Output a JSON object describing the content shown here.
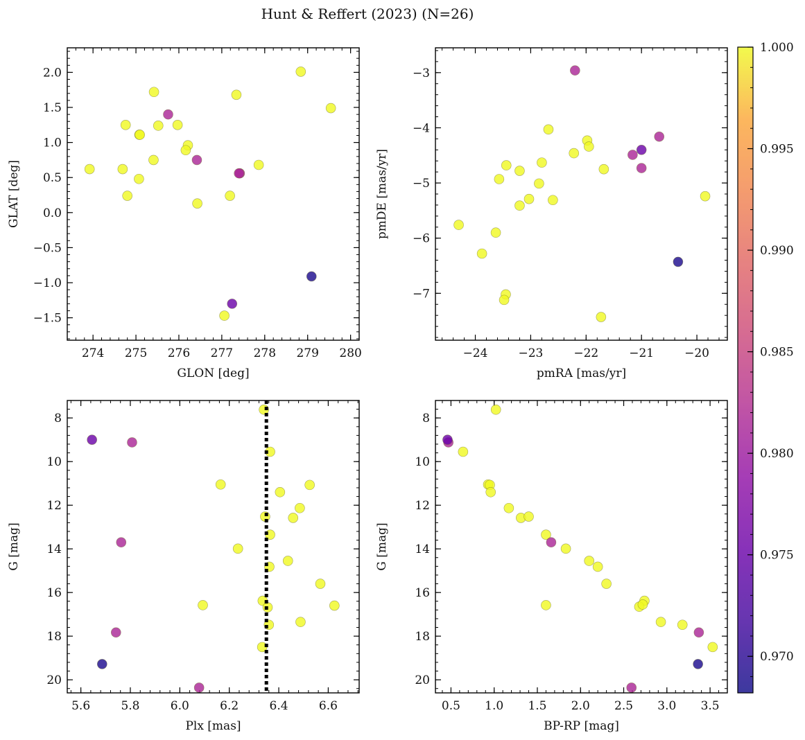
{
  "title": "Hunt & Reffert (2023) (N=26)",
  "colormap": "plasma",
  "colorbar": {
    "vmin": 0.9682,
    "vmax": 1.0,
    "ticks": [
      0.97,
      0.975,
      0.98,
      0.985,
      0.99,
      0.995,
      1.0
    ],
    "tick_labels": [
      "0.970",
      "0.975",
      "0.980",
      "0.985",
      "0.990",
      "0.995",
      "1.000"
    ]
  },
  "chart_data": [
    {
      "id": "glon_glat",
      "type": "scatter",
      "xlabel": "GLON [deg]",
      "ylabel": "GLAT [deg]",
      "xlim": [
        273.4,
        280.2
      ],
      "ylim": [
        -1.82,
        2.35
      ],
      "xticks": [
        274,
        275,
        276,
        277,
        278,
        279,
        280
      ],
      "xtick_labels": [
        "274",
        "275",
        "276",
        "277",
        "278",
        "279",
        "280"
      ],
      "yticks": [
        -1.5,
        -1.0,
        -0.5,
        0.0,
        0.5,
        1.0,
        1.5,
        2.0
      ],
      "ytick_labels": [
        "−1.5",
        "−1.0",
        "−0.5",
        "0.0",
        "0.5",
        "1.0",
        "1.5",
        "2.0"
      ],
      "x_minor_step": 0.2,
      "y_minor_step": 0.1,
      "inverted_y": false,
      "points": [
        {
          "x": 273.92,
          "y": 0.62,
          "c": 1.0
        },
        {
          "x": 274.76,
          "y": 1.25,
          "c": 1.0
        },
        {
          "x": 274.69,
          "y": 0.62,
          "c": 1.0
        },
        {
          "x": 274.8,
          "y": 0.24,
          "c": 1.0
        },
        {
          "x": 275.08,
          "y": 1.11,
          "c": 1.0
        },
        {
          "x": 275.07,
          "y": 0.48,
          "c": 1.0
        },
        {
          "x": 275.42,
          "y": 1.72,
          "c": 1.0
        },
        {
          "x": 275.41,
          "y": 0.75,
          "c": 1.0
        },
        {
          "x": 275.52,
          "y": 1.24,
          "c": 1.0
        },
        {
          "x": 275.97,
          "y": 1.25,
          "c": 1.0
        },
        {
          "x": 276.21,
          "y": 0.96,
          "c": 1.0
        },
        {
          "x": 276.16,
          "y": 0.89,
          "c": 1.0
        },
        {
          "x": 276.43,
          "y": 0.13,
          "c": 1.0
        },
        {
          "x": 277.34,
          "y": 1.68,
          "c": 1.0
        },
        {
          "x": 277.19,
          "y": 0.24,
          "c": 1.0
        },
        {
          "x": 277.06,
          "y": -1.47,
          "c": 1.0
        },
        {
          "x": 277.86,
          "y": 0.68,
          "c": 1.0
        },
        {
          "x": 278.84,
          "y": 2.01,
          "c": 1.0
        },
        {
          "x": 279.54,
          "y": 1.49,
          "c": 1.0
        },
        {
          "x": 275.75,
          "y": 1.4,
          "c": 0.9815
        },
        {
          "x": 276.42,
          "y": 0.75,
          "c": 0.9815
        },
        {
          "x": 277.42,
          "y": 0.56,
          "c": 0.9815
        },
        {
          "x": 277.4,
          "y": 0.56,
          "c": 0.9815
        },
        {
          "x": 277.24,
          "y": -1.3,
          "c": 0.9752
        },
        {
          "x": 279.09,
          "y": -0.91,
          "c": 0.969
        },
        {
          "x": 275.09,
          "y": 1.11,
          "c": 1.0
        }
      ]
    },
    {
      "id": "pmra_pmde",
      "type": "scatter",
      "xlabel": "pmRA [mas/yr]",
      "ylabel": "pmDE [mas/yr]",
      "xlim": [
        -24.72,
        -19.45
      ],
      "ylim": [
        -7.85,
        -2.55
      ],
      "xticks": [
        -24,
        -23,
        -22,
        -21,
        -20
      ],
      "xtick_labels": [
        "−24",
        "−23",
        "−22",
        "−21",
        "−20"
      ],
      "yticks": [
        -7,
        -6,
        -5,
        -4,
        -3
      ],
      "ytick_labels": [
        "−7",
        "−6",
        "−5",
        "−4",
        "−3"
      ],
      "x_minor_step": 0.2,
      "y_minor_step": 0.2,
      "inverted_y": false,
      "points": [
        {
          "x": -24.3,
          "y": -5.76,
          "c": 1.0
        },
        {
          "x": -23.88,
          "y": -6.28,
          "c": 1.0
        },
        {
          "x": -23.63,
          "y": -5.9,
          "c": 1.0
        },
        {
          "x": -23.57,
          "y": -4.93,
          "c": 1.0
        },
        {
          "x": -23.44,
          "y": -4.68,
          "c": 1.0
        },
        {
          "x": -23.45,
          "y": -7.02,
          "c": 1.0
        },
        {
          "x": -23.48,
          "y": -7.12,
          "c": 1.0
        },
        {
          "x": -23.2,
          "y": -4.78,
          "c": 1.0
        },
        {
          "x": -23.2,
          "y": -5.41,
          "c": 1.0
        },
        {
          "x": -23.03,
          "y": -5.29,
          "c": 1.0
        },
        {
          "x": -22.85,
          "y": -5.01,
          "c": 1.0
        },
        {
          "x": -22.8,
          "y": -4.63,
          "c": 1.0
        },
        {
          "x": -22.68,
          "y": -4.03,
          "c": 1.0
        },
        {
          "x": -22.6,
          "y": -5.31,
          "c": 1.0
        },
        {
          "x": -22.22,
          "y": -4.46,
          "c": 1.0
        },
        {
          "x": -21.98,
          "y": -4.23,
          "c": 1.0
        },
        {
          "x": -21.95,
          "y": -4.34,
          "c": 1.0
        },
        {
          "x": -21.68,
          "y": -4.75,
          "c": 1.0
        },
        {
          "x": -21.73,
          "y": -7.43,
          "c": 1.0
        },
        {
          "x": -19.85,
          "y": -5.24,
          "c": 1.0
        },
        {
          "x": -22.2,
          "y": -2.96,
          "c": 0.9815
        },
        {
          "x": -21.16,
          "y": -4.49,
          "c": 0.9815
        },
        {
          "x": -21.0,
          "y": -4.73,
          "c": 0.9815
        },
        {
          "x": -20.68,
          "y": -4.16,
          "c": 0.9815
        },
        {
          "x": -21.0,
          "y": -4.4,
          "c": 0.9752
        },
        {
          "x": -20.34,
          "y": -6.43,
          "c": 0.969
        }
      ]
    },
    {
      "id": "plx_g",
      "type": "scatter",
      "xlabel": "Plx [mas]",
      "ylabel": "G [mag]",
      "xlim": [
        5.545,
        6.725
      ],
      "ylim": [
        20.6,
        7.2
      ],
      "xticks": [
        5.6,
        5.8,
        6.0,
        6.2,
        6.4,
        6.6
      ],
      "xtick_labels": [
        "5.6",
        "5.8",
        "6.0",
        "6.2",
        "6.4",
        "6.6"
      ],
      "yticks": [
        8,
        10,
        12,
        14,
        16,
        18,
        20
      ],
      "ytick_labels": [
        "8",
        "10",
        "12",
        "14",
        "16",
        "18",
        "20"
      ],
      "x_minor_step": 0.04,
      "y_minor_step": 0.4,
      "inverted_y": true,
      "vline": {
        "x": 6.35,
        "style": "dotted"
      },
      "points": [
        {
          "x": 6.34,
          "y": 7.62,
          "c": 1.0
        },
        {
          "x": 6.365,
          "y": 9.55,
          "c": 1.0
        },
        {
          "x": 6.165,
          "y": 11.05,
          "c": 1.0
        },
        {
          "x": 6.525,
          "y": 11.07,
          "c": 1.0
        },
        {
          "x": 6.405,
          "y": 11.4,
          "c": 1.0
        },
        {
          "x": 6.485,
          "y": 12.13,
          "c": 1.0
        },
        {
          "x": 6.345,
          "y": 12.52,
          "c": 1.0
        },
        {
          "x": 6.458,
          "y": 12.58,
          "c": 1.0
        },
        {
          "x": 6.365,
          "y": 13.35,
          "c": 1.0
        },
        {
          "x": 6.235,
          "y": 13.99,
          "c": 1.0
        },
        {
          "x": 6.437,
          "y": 14.55,
          "c": 1.0
        },
        {
          "x": 6.362,
          "y": 14.82,
          "c": 1.0
        },
        {
          "x": 6.568,
          "y": 15.6,
          "c": 1.0
        },
        {
          "x": 6.335,
          "y": 16.38,
          "c": 1.0
        },
        {
          "x": 6.355,
          "y": 16.68,
          "c": 1.0
        },
        {
          "x": 6.093,
          "y": 16.58,
          "c": 1.0
        },
        {
          "x": 6.625,
          "y": 16.6,
          "c": 1.0
        },
        {
          "x": 6.488,
          "y": 17.35,
          "c": 1.0
        },
        {
          "x": 6.36,
          "y": 17.48,
          "c": 1.0
        },
        {
          "x": 6.333,
          "y": 18.5,
          "c": 1.0
        },
        {
          "x": 5.807,
          "y": 9.12,
          "c": 0.9815
        },
        {
          "x": 5.763,
          "y": 13.7,
          "c": 0.9815
        },
        {
          "x": 5.742,
          "y": 17.83,
          "c": 0.9815
        },
        {
          "x": 6.078,
          "y": 20.36,
          "c": 0.9815
        },
        {
          "x": 5.645,
          "y": 9.0,
          "c": 0.9752
        },
        {
          "x": 5.686,
          "y": 19.28,
          "c": 0.969
        }
      ]
    },
    {
      "id": "bprp_g",
      "type": "scatter",
      "xlabel": "BP-RP [mag]",
      "ylabel": "G [mag]",
      "xlim": [
        0.32,
        3.7
      ],
      "ylim": [
        20.6,
        7.2
      ],
      "xticks": [
        0.5,
        1.0,
        1.5,
        2.0,
        2.5,
        3.0,
        3.5
      ],
      "xtick_labels": [
        "0.5",
        "1.0",
        "1.5",
        "2.0",
        "2.5",
        "3.0",
        "3.5"
      ],
      "yticks": [
        8,
        10,
        12,
        14,
        16,
        18,
        20
      ],
      "ytick_labels": [
        "8",
        "10",
        "12",
        "14",
        "16",
        "18",
        "20"
      ],
      "x_minor_step": 0.1,
      "y_minor_step": 0.4,
      "inverted_y": true,
      "points": [
        {
          "x": 1.02,
          "y": 7.62,
          "c": 1.0
        },
        {
          "x": 0.64,
          "y": 9.55,
          "c": 1.0
        },
        {
          "x": 0.93,
          "y": 11.05,
          "c": 1.0
        },
        {
          "x": 0.95,
          "y": 11.07,
          "c": 1.0
        },
        {
          "x": 0.96,
          "y": 11.4,
          "c": 1.0
        },
        {
          "x": 1.17,
          "y": 12.13,
          "c": 1.0
        },
        {
          "x": 1.31,
          "y": 12.58,
          "c": 1.0
        },
        {
          "x": 1.4,
          "y": 12.52,
          "c": 1.0
        },
        {
          "x": 1.6,
          "y": 13.35,
          "c": 1.0
        },
        {
          "x": 1.83,
          "y": 13.99,
          "c": 1.0
        },
        {
          "x": 2.1,
          "y": 14.55,
          "c": 1.0
        },
        {
          "x": 2.2,
          "y": 14.82,
          "c": 1.0
        },
        {
          "x": 2.3,
          "y": 15.6,
          "c": 1.0
        },
        {
          "x": 1.6,
          "y": 16.58,
          "c": 1.0
        },
        {
          "x": 2.74,
          "y": 16.38,
          "c": 1.0
        },
        {
          "x": 2.68,
          "y": 16.65,
          "c": 1.0
        },
        {
          "x": 2.72,
          "y": 16.55,
          "c": 1.0
        },
        {
          "x": 2.93,
          "y": 17.35,
          "c": 1.0
        },
        {
          "x": 3.18,
          "y": 17.48,
          "c": 1.0
        },
        {
          "x": 3.53,
          "y": 18.5,
          "c": 1.0
        },
        {
          "x": 0.47,
          "y": 9.12,
          "c": 0.9815
        },
        {
          "x": 1.66,
          "y": 13.7,
          "c": 0.9815
        },
        {
          "x": 3.37,
          "y": 17.83,
          "c": 0.9815
        },
        {
          "x": 2.59,
          "y": 20.36,
          "c": 0.9815
        },
        {
          "x": 0.46,
          "y": 9.0,
          "c": 0.9752
        },
        {
          "x": 3.36,
          "y": 19.28,
          "c": 0.969
        }
      ]
    }
  ]
}
